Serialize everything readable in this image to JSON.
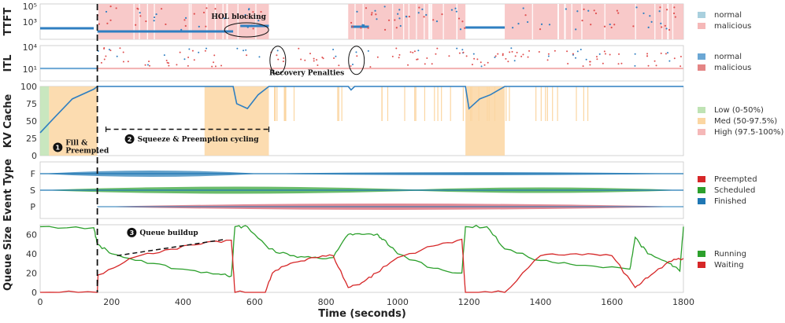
{
  "chart_data": [
    {
      "type": "scatter",
      "panel": "ttft",
      "ylabel": "TTFT",
      "yscale": "log",
      "ylim_log10": [
        0.8,
        5.3
      ],
      "yticks": [
        {
          "v": 3,
          "label": "10³"
        },
        {
          "v": 5,
          "label": "10⁵"
        }
      ],
      "legend": [
        {
          "name": "normal",
          "color": "#a9d0de"
        },
        {
          "name": "malicious",
          "color": "#f5b8b8"
        }
      ],
      "high_shade": [
        [
          160,
          640
        ],
        [
          862,
          1190
        ],
        [
          1300,
          1800
        ]
      ],
      "series": [
        {
          "name": "normal",
          "color": "#2f7fc1",
          "segments": [
            {
              "x": [
                0,
                150
              ],
              "y": 2.2
            },
            {
              "x": [
                160,
                540
              ],
              "y": 1.8
            },
            {
              "x": [
                560,
                640
              ],
              "y": 2.5
            },
            {
              "x": [
                870,
                920
              ],
              "y": 2.4
            },
            {
              "x": [
                1190,
                1300
              ],
              "y": 2.3
            }
          ]
        },
        {
          "name": "malicious",
          "color": "#e05050",
          "scattered": [
            [
              160,
              640
            ],
            [
              862,
              1190
            ],
            [
              1300,
              1800
            ]
          ]
        }
      ],
      "annotations": [
        {
          "text": "HOL blocking",
          "x": 560,
          "y": 3.4
        }
      ]
    },
    {
      "type": "scatter",
      "panel": "itl",
      "ylabel": "ITL",
      "yscale": "log",
      "ylim_log10": [
        -0.6,
        4.2
      ],
      "yticks": [
        {
          "v": 1,
          "label": "10¹"
        },
        {
          "v": 4,
          "label": "10⁴"
        }
      ],
      "legend": [
        {
          "name": "normal",
          "color": "#6ba7d4"
        },
        {
          "name": "malicious",
          "color": "#e48585"
        }
      ],
      "annotations": [
        {
          "text": "Recovery Penalties",
          "x": 680,
          "y": 0.2
        }
      ],
      "highlight_x": [
        665,
        885
      ]
    },
    {
      "type": "line",
      "panel": "kv_cache",
      "ylabel": "KV Cache",
      "ylim": [
        0,
        100
      ],
      "yticks": [
        0,
        25,
        50,
        75,
        100
      ],
      "bands": [
        {
          "name": "Low (0-50%)",
          "color": "#bfe3b4",
          "ranges": [
            [
              0,
              25
            ]
          ]
        },
        {
          "name": "Med (50-97.5%)",
          "color": "#fbd6a2",
          "ranges": [
            [
              25,
              160
            ],
            [
              460,
              640
            ],
            [
              1190,
              1300
            ]
          ]
        },
        {
          "name": "High (97.5-100%)",
          "color": "#f5b8b8",
          "ranges": []
        }
      ],
      "series": [
        {
          "name": "kv",
          "color": "#2f7fc1",
          "points": [
            [
              0,
              33
            ],
            [
              40,
              55
            ],
            [
              90,
              82
            ],
            [
              150,
              96
            ],
            [
              160,
              100
            ],
            [
              540,
              100
            ],
            [
              550,
              75
            ],
            [
              580,
              68
            ],
            [
              610,
              88
            ],
            [
              640,
              100
            ],
            [
              862,
              100
            ],
            [
              870,
              95
            ],
            [
              880,
              100
            ],
            [
              1190,
              100
            ],
            [
              1200,
              68
            ],
            [
              1230,
              82
            ],
            [
              1260,
              88
            ],
            [
              1300,
              100
            ],
            [
              1800,
              100
            ]
          ]
        }
      ],
      "annotations": [
        {
          "num": "1",
          "text": "Fill &",
          "text2": "Preempted",
          "x": 25,
          "y": 12
        },
        {
          "num": "2",
          "text": "Squeeze & Preemption cycling",
          "x": 215,
          "y": 24
        }
      ]
    },
    {
      "type": "area",
      "panel": "event_type",
      "ylabel": "Event Type",
      "categories": [
        "F",
        "S",
        "P"
      ],
      "legend": [
        {
          "name": "Preempted",
          "color": "#d62728"
        },
        {
          "name": "Scheduled",
          "color": "#2ca02c"
        },
        {
          "name": "Finished",
          "color": "#1f77b4"
        }
      ]
    },
    {
      "type": "line",
      "panel": "queue_size",
      "title": "",
      "xlabel": "Time (seconds)",
      "ylabel": "Queue Size",
      "xlim": [
        0,
        1800
      ],
      "ylim": [
        0,
        70
      ],
      "xticks": [
        0,
        200,
        400,
        600,
        800,
        1000,
        1200,
        1400,
        1600,
        1800
      ],
      "yticks": [
        0,
        20,
        40,
        60
      ],
      "series": [
        {
          "name": "Running",
          "color": "#2ca02c",
          "points": [
            [
              0,
              68
            ],
            [
              150,
              67
            ],
            [
              160,
              50
            ],
            [
              200,
              40
            ],
            [
              300,
              30
            ],
            [
              400,
              24
            ],
            [
              500,
              19
            ],
            [
              535,
              17
            ],
            [
              545,
              68
            ],
            [
              580,
              68
            ],
            [
              640,
              45
            ],
            [
              700,
              38
            ],
            [
              760,
              36
            ],
            [
              820,
              36
            ],
            [
              862,
              60
            ],
            [
              900,
              60
            ],
            [
              940,
              60
            ],
            [
              960,
              55
            ],
            [
              1000,
              40
            ],
            [
              1100,
              25
            ],
            [
              1180,
              20
            ],
            [
              1190,
              68
            ],
            [
              1250,
              68
            ],
            [
              1300,
              45
            ],
            [
              1400,
              33
            ],
            [
              1500,
              28
            ],
            [
              1650,
              24
            ],
            [
              1665,
              57
            ],
            [
              1700,
              40
            ],
            [
              1760,
              30
            ],
            [
              1790,
              22
            ],
            [
              1800,
              68
            ]
          ]
        },
        {
          "name": "Waiting",
          "color": "#d62728",
          "points": [
            [
              0,
              0
            ],
            [
              160,
              0
            ],
            [
              162,
              18
            ],
            [
              250,
              35
            ],
            [
              350,
              44
            ],
            [
              450,
              50
            ],
            [
              535,
              54
            ],
            [
              545,
              0
            ],
            [
              630,
              0
            ],
            [
              650,
              20
            ],
            [
              700,
              30
            ],
            [
              760,
              36
            ],
            [
              820,
              38
            ],
            [
              862,
              5
            ],
            [
              900,
              10
            ],
            [
              940,
              20
            ],
            [
              1000,
              36
            ],
            [
              1100,
              48
            ],
            [
              1180,
              55
            ],
            [
              1190,
              0
            ],
            [
              1300,
              0
            ],
            [
              1400,
              38
            ],
            [
              1500,
              40
            ],
            [
              1600,
              38
            ],
            [
              1665,
              5
            ],
            [
              1700,
              15
            ],
            [
              1760,
              32
            ],
            [
              1800,
              35
            ]
          ]
        }
      ],
      "annotations": [
        {
          "num": "3",
          "text": "Queue buildup",
          "x": 285,
          "y": 62
        }
      ]
    }
  ],
  "event_marker_x": 160
}
